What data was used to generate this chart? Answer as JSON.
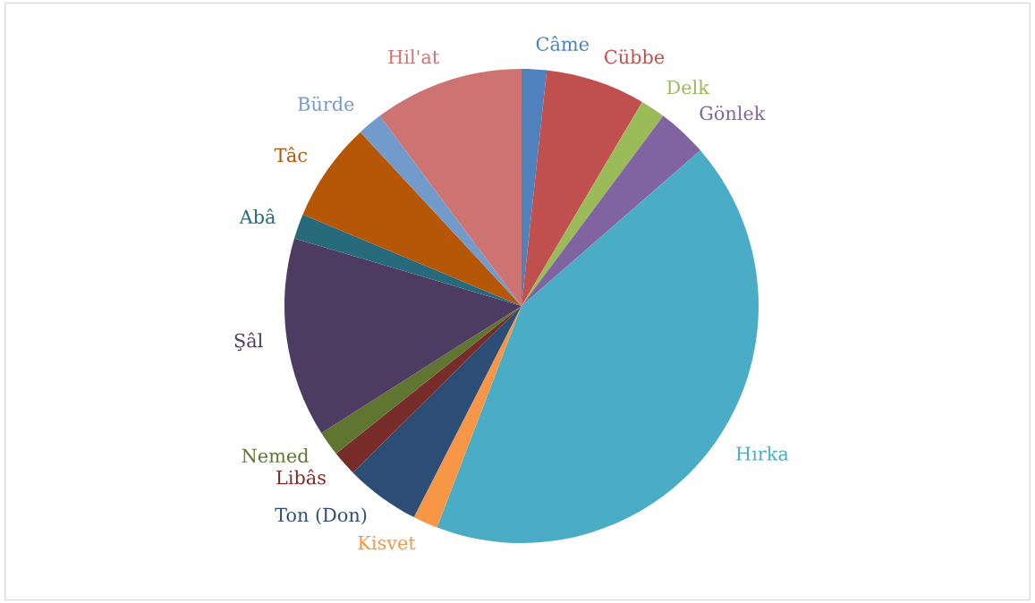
{
  "chart_data": {
    "type": "pie",
    "categories": [
      "Câme",
      "Cübbe",
      "Delk",
      "Gönlek",
      "Hırka",
      "Kisvet",
      "Ton (Don)",
      "Libâs",
      "Nemed",
      "Şâl",
      "Abâ",
      "Tâc",
      "Bürde",
      "Hil'at"
    ],
    "values": [
      1.7,
      6.8,
      1.7,
      3.4,
      42.2,
      1.7,
      5.1,
      1.7,
      1.7,
      13.6,
      1.7,
      6.8,
      1.7,
      10.2
    ],
    "colors": [
      "#4f81bd",
      "#c0504d",
      "#9bbb59",
      "#8064a2",
      "#4bacc6",
      "#f79646",
      "#2c4d75",
      "#772c2a",
      "#5f7530",
      "#4d3b62",
      "#276a7c",
      "#b65708",
      "#729aca",
      "#cd7371"
    ]
  }
}
